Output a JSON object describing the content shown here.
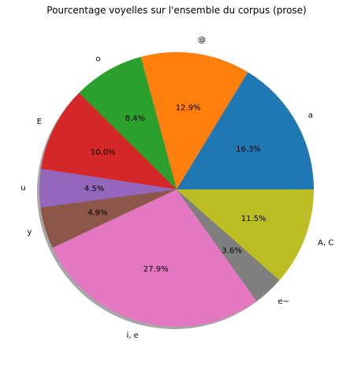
{
  "chart_data": {
    "type": "pie",
    "title": "Pourcentage voyelles sur l'ensemble du corpus (prose)",
    "slices": [
      {
        "label": "a",
        "value": 16.3,
        "pct_label": "16.3%",
        "color": "#1f77b4"
      },
      {
        "label": "@",
        "value": 12.9,
        "pct_label": "12.9%",
        "color": "#ff7f0e"
      },
      {
        "label": "o",
        "value": 8.4,
        "pct_label": "8.4%",
        "color": "#2ca02c"
      },
      {
        "label": "E",
        "value": 10.0,
        "pct_label": "10.0%",
        "color": "#d62728"
      },
      {
        "label": "u",
        "value": 4.5,
        "pct_label": "4.5%",
        "color": "#9467bd"
      },
      {
        "label": "y",
        "value": 4.9,
        "pct_label": "4.9%",
        "color": "#8c564b"
      },
      {
        "label": "i, e",
        "value": 27.9,
        "pct_label": "27.9%",
        "color": "#e377c2"
      },
      {
        "label": "e~",
        "value": 3.6,
        "pct_label": "3.6%",
        "color": "#7f7f7f"
      },
      {
        "label": "A, C",
        "value": 11.5,
        "pct_label": "11.5%",
        "color": "#bcbd22"
      }
    ],
    "start_angle_deg": 0,
    "direction": "counterclockwise",
    "shadow": true,
    "legend": "none"
  }
}
